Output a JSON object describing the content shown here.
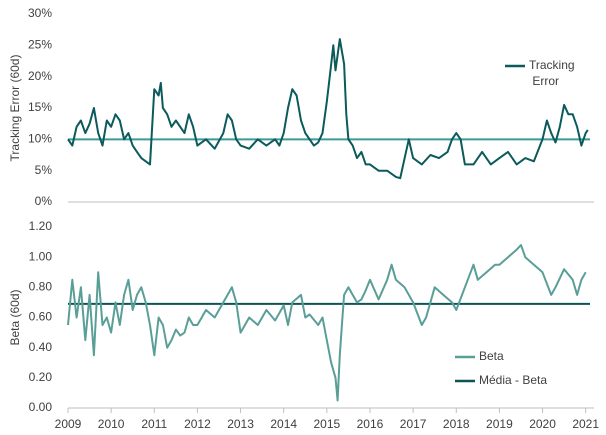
{
  "chart_data": [
    {
      "type": "line",
      "ylabel": "Tracking Error (60d)",
      "xlim": [
        2009,
        2021.1
      ],
      "ylim": [
        0,
        30
      ],
      "yticks": [
        {
          "value": 0,
          "label": "0%"
        },
        {
          "value": 5,
          "label": "5%"
        },
        {
          "value": 10,
          "label": "10%"
        },
        {
          "value": 15,
          "label": "15%"
        },
        {
          "value": 20,
          "label": "20%"
        },
        {
          "value": 25,
          "label": "25%"
        },
        {
          "value": 30,
          "label": "30%"
        }
      ],
      "reference_line": {
        "value": 10,
        "color": "#3d9a94"
      },
      "series": [
        {
          "name": "Tracking Error",
          "color": "#0b5a5c",
          "x": [
            2009.0,
            2009.1,
            2009.2,
            2009.3,
            2009.4,
            2009.5,
            2009.6,
            2009.7,
            2009.8,
            2009.9,
            2010.0,
            2010.1,
            2010.2,
            2010.3,
            2010.4,
            2010.5,
            2010.6,
            2010.7,
            2010.8,
            2010.9,
            2011.0,
            2011.1,
            2011.15,
            2011.2,
            2011.3,
            2011.4,
            2011.5,
            2011.6,
            2011.7,
            2011.8,
            2011.9,
            2012.0,
            2012.2,
            2012.4,
            2012.6,
            2012.7,
            2012.8,
            2012.9,
            2013.0,
            2013.2,
            2013.4,
            2013.6,
            2013.8,
            2013.9,
            2014.0,
            2014.1,
            2014.2,
            2014.3,
            2014.4,
            2014.5,
            2014.6,
            2014.7,
            2014.8,
            2014.9,
            2015.0,
            2015.1,
            2015.15,
            2015.2,
            2015.3,
            2015.4,
            2015.45,
            2015.5,
            2015.6,
            2015.7,
            2015.8,
            2015.9,
            2016.0,
            2016.2,
            2016.4,
            2016.6,
            2016.7,
            2016.9,
            2017.0,
            2017.2,
            2017.4,
            2017.6,
            2017.8,
            2017.9,
            2018.0,
            2018.1,
            2018.2,
            2018.4,
            2018.6,
            2018.8,
            2019.0,
            2019.2,
            2019.4,
            2019.6,
            2019.8,
            2020.0,
            2020.1,
            2020.2,
            2020.3,
            2020.4,
            2020.5,
            2020.6,
            2020.7,
            2020.8,
            2020.9,
            2021.0,
            2021.05
          ],
          "values": [
            10,
            9,
            12,
            13,
            11,
            12.5,
            15,
            11,
            9,
            13,
            12,
            14,
            13,
            10,
            11,
            9,
            8,
            7,
            6.5,
            6,
            18,
            17,
            19,
            15,
            14,
            12,
            13,
            12,
            11,
            14,
            12,
            9,
            10,
            8.5,
            11,
            14,
            13,
            10,
            9,
            8.5,
            10,
            9,
            10,
            9,
            11,
            15,
            18,
            17,
            13,
            11,
            10,
            9,
            9.5,
            11,
            16,
            22,
            25,
            21,
            26,
            22,
            14,
            10,
            9,
            7,
            8,
            6,
            6,
            5,
            5,
            4,
            3.8,
            10,
            7,
            6,
            7.5,
            7,
            8,
            10,
            11,
            10,
            6,
            6,
            8,
            6,
            7,
            8,
            6,
            7,
            6.5,
            10,
            13,
            11,
            9.5,
            12,
            15.5,
            14,
            14,
            12,
            9,
            11,
            11.5
          ]
        }
      ]
    },
    {
      "type": "line",
      "ylabel": "Beta (60d)",
      "xlim": [
        2009,
        2021.1
      ],
      "xticks": [
        2009,
        2010,
        2011,
        2012,
        2013,
        2014,
        2015,
        2016,
        2017,
        2018,
        2019,
        2020,
        2021
      ],
      "ylim": [
        0,
        1.2
      ],
      "yticks": [
        {
          "value": 0,
          "label": "0.00"
        },
        {
          "value": 0.2,
          "label": "0.20"
        },
        {
          "value": 0.4,
          "label": "0.40"
        },
        {
          "value": 0.6,
          "label": "0.60"
        },
        {
          "value": 0.8,
          "label": "0.80"
        },
        {
          "value": 1,
          "label": "1.00"
        },
        {
          "value": 1.2,
          "label": "1.20"
        }
      ],
      "reference_line": {
        "name": "Média - Beta",
        "value": 0.69,
        "color": "#0d5555"
      },
      "series": [
        {
          "name": "Beta",
          "color": "#5a9e98",
          "x": [
            2009.0,
            2009.1,
            2009.2,
            2009.3,
            2009.4,
            2009.5,
            2009.6,
            2009.7,
            2009.8,
            2009.9,
            2010.0,
            2010.1,
            2010.2,
            2010.3,
            2010.4,
            2010.5,
            2010.6,
            2010.7,
            2010.8,
            2010.9,
            2011.0,
            2011.1,
            2011.2,
            2011.3,
            2011.4,
            2011.5,
            2011.6,
            2011.7,
            2011.8,
            2011.9,
            2012.0,
            2012.2,
            2012.4,
            2012.6,
            2012.8,
            2012.9,
            2013.0,
            2013.2,
            2013.4,
            2013.6,
            2013.8,
            2014.0,
            2014.1,
            2014.2,
            2014.4,
            2014.5,
            2014.6,
            2014.8,
            2014.9,
            2015.0,
            2015.1,
            2015.2,
            2015.25,
            2015.3,
            2015.35,
            2015.4,
            2015.5,
            2015.6,
            2015.7,
            2015.8,
            2015.9,
            2016.0,
            2016.2,
            2016.4,
            2016.5,
            2016.6,
            2016.8,
            2017.0,
            2017.2,
            2017.3,
            2017.5,
            2017.7,
            2017.9,
            2018.0,
            2018.2,
            2018.4,
            2018.5,
            2018.7,
            2018.9,
            2019.0,
            2019.2,
            2019.4,
            2019.5,
            2019.6,
            2019.8,
            2020.0,
            2020.2,
            2020.3,
            2020.5,
            2020.7,
            2020.8,
            2020.9,
            2021.0
          ],
          "values": [
            0.55,
            0.85,
            0.6,
            0.8,
            0.45,
            0.75,
            0.35,
            0.9,
            0.55,
            0.6,
            0.5,
            0.7,
            0.55,
            0.75,
            0.85,
            0.65,
            0.75,
            0.8,
            0.7,
            0.55,
            0.35,
            0.6,
            0.55,
            0.4,
            0.45,
            0.52,
            0.48,
            0.5,
            0.6,
            0.55,
            0.55,
            0.65,
            0.6,
            0.7,
            0.8,
            0.7,
            0.5,
            0.6,
            0.55,
            0.65,
            0.58,
            0.68,
            0.55,
            0.7,
            0.75,
            0.6,
            0.62,
            0.55,
            0.6,
            0.45,
            0.3,
            0.2,
            0.05,
            0.35,
            0.55,
            0.75,
            0.8,
            0.75,
            0.7,
            0.72,
            0.78,
            0.85,
            0.72,
            0.85,
            0.95,
            0.85,
            0.8,
            0.7,
            0.55,
            0.6,
            0.8,
            0.75,
            0.7,
            0.65,
            0.8,
            0.95,
            0.85,
            0.9,
            0.95,
            0.95,
            1.0,
            1.05,
            1.08,
            1.0,
            0.95,
            0.9,
            0.75,
            0.8,
            0.92,
            0.85,
            0.75,
            0.85,
            0.9
          ]
        }
      ]
    }
  ]
}
